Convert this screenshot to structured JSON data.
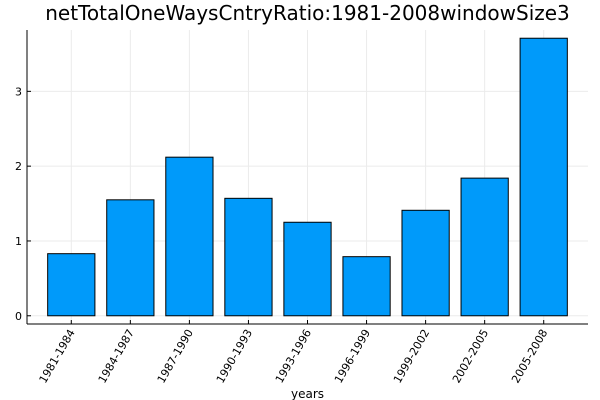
{
  "chart_data": {
    "type": "bar",
    "title": "netTotalOneWaysCntryRatio:1981-2008windowSize3",
    "xlabel": "years",
    "ylabel": "",
    "categories": [
      "1981-1984",
      "1984-1987",
      "1987-1990",
      "1990-1993",
      "1993-1996",
      "1996-1999",
      "1999-2002",
      "2002-2005",
      "2005-2008"
    ],
    "values": [
      0.83,
      1.55,
      2.12,
      1.57,
      1.25,
      0.79,
      1.41,
      1.84,
      3.71
    ],
    "ylim": [
      -0.11,
      3.82
    ],
    "yticks": [
      0,
      1,
      2,
      3
    ],
    "grid": true,
    "legend": "none",
    "bar_color": "#009AFA",
    "bar_edge_color": "#000000",
    "grid_color": "#EBEBEB",
    "axis_color": "#000000"
  }
}
